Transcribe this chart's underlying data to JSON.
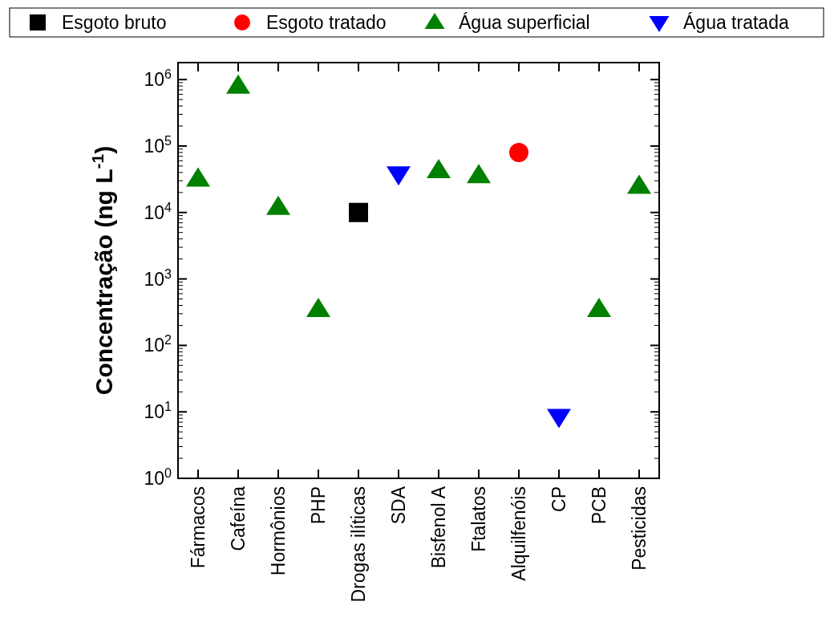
{
  "chart_data": {
    "type": "scatter",
    "ylabel": "Concentração (ng L$^{-1}$)",
    "categories": [
      "Fármacos",
      "Cafeína",
      "Hormônios",
      "PHP",
      "Drogas ilíticas",
      "SDA",
      "Bisfenol A",
      "Ftalatos",
      "Alquilfenóis",
      "CP",
      "PCB",
      "Pesticidas"
    ],
    "series": [
      {
        "name": "Esgoto bruto",
        "color": "#000000",
        "marker": "square",
        "values": [
          null,
          null,
          null,
          null,
          10000,
          null,
          null,
          null,
          null,
          null,
          null,
          null
        ]
      },
      {
        "name": "Esgoto tratado",
        "color": "#ff0000",
        "marker": "circle",
        "values": [
          null,
          null,
          null,
          null,
          null,
          null,
          null,
          null,
          80000,
          null,
          null,
          null
        ]
      },
      {
        "name": "Água superficial",
        "color": "#008000",
        "marker": "triangle",
        "values": [
          32000,
          800000,
          12000,
          350,
          null,
          null,
          43000,
          36000,
          null,
          null,
          350,
          25000
        ]
      },
      {
        "name": "Água tratada",
        "color": "#0000ff",
        "marker": "triangle-down",
        "values": [
          null,
          null,
          null,
          null,
          null,
          38000,
          null,
          null,
          null,
          8.5,
          null,
          null
        ]
      }
    ],
    "log": "y",
    "ylim": [
      1,
      1800000
    ],
    "yticks": [
      {
        "value": 1,
        "label": "10$^{0}$"
      },
      {
        "value": 10,
        "label": "10$^{1}$"
      },
      {
        "value": 100,
        "label": "10$^{2}$"
      },
      {
        "value": 1000,
        "label": "10$^{3}$"
      },
      {
        "value": 10000,
        "label": "10$^{4}$"
      },
      {
        "value": 100000,
        "label": "10$^{5}$"
      },
      {
        "value": 1000000,
        "label": "10$^{6}$"
      }
    ],
    "grid": false,
    "legend": "top"
  }
}
